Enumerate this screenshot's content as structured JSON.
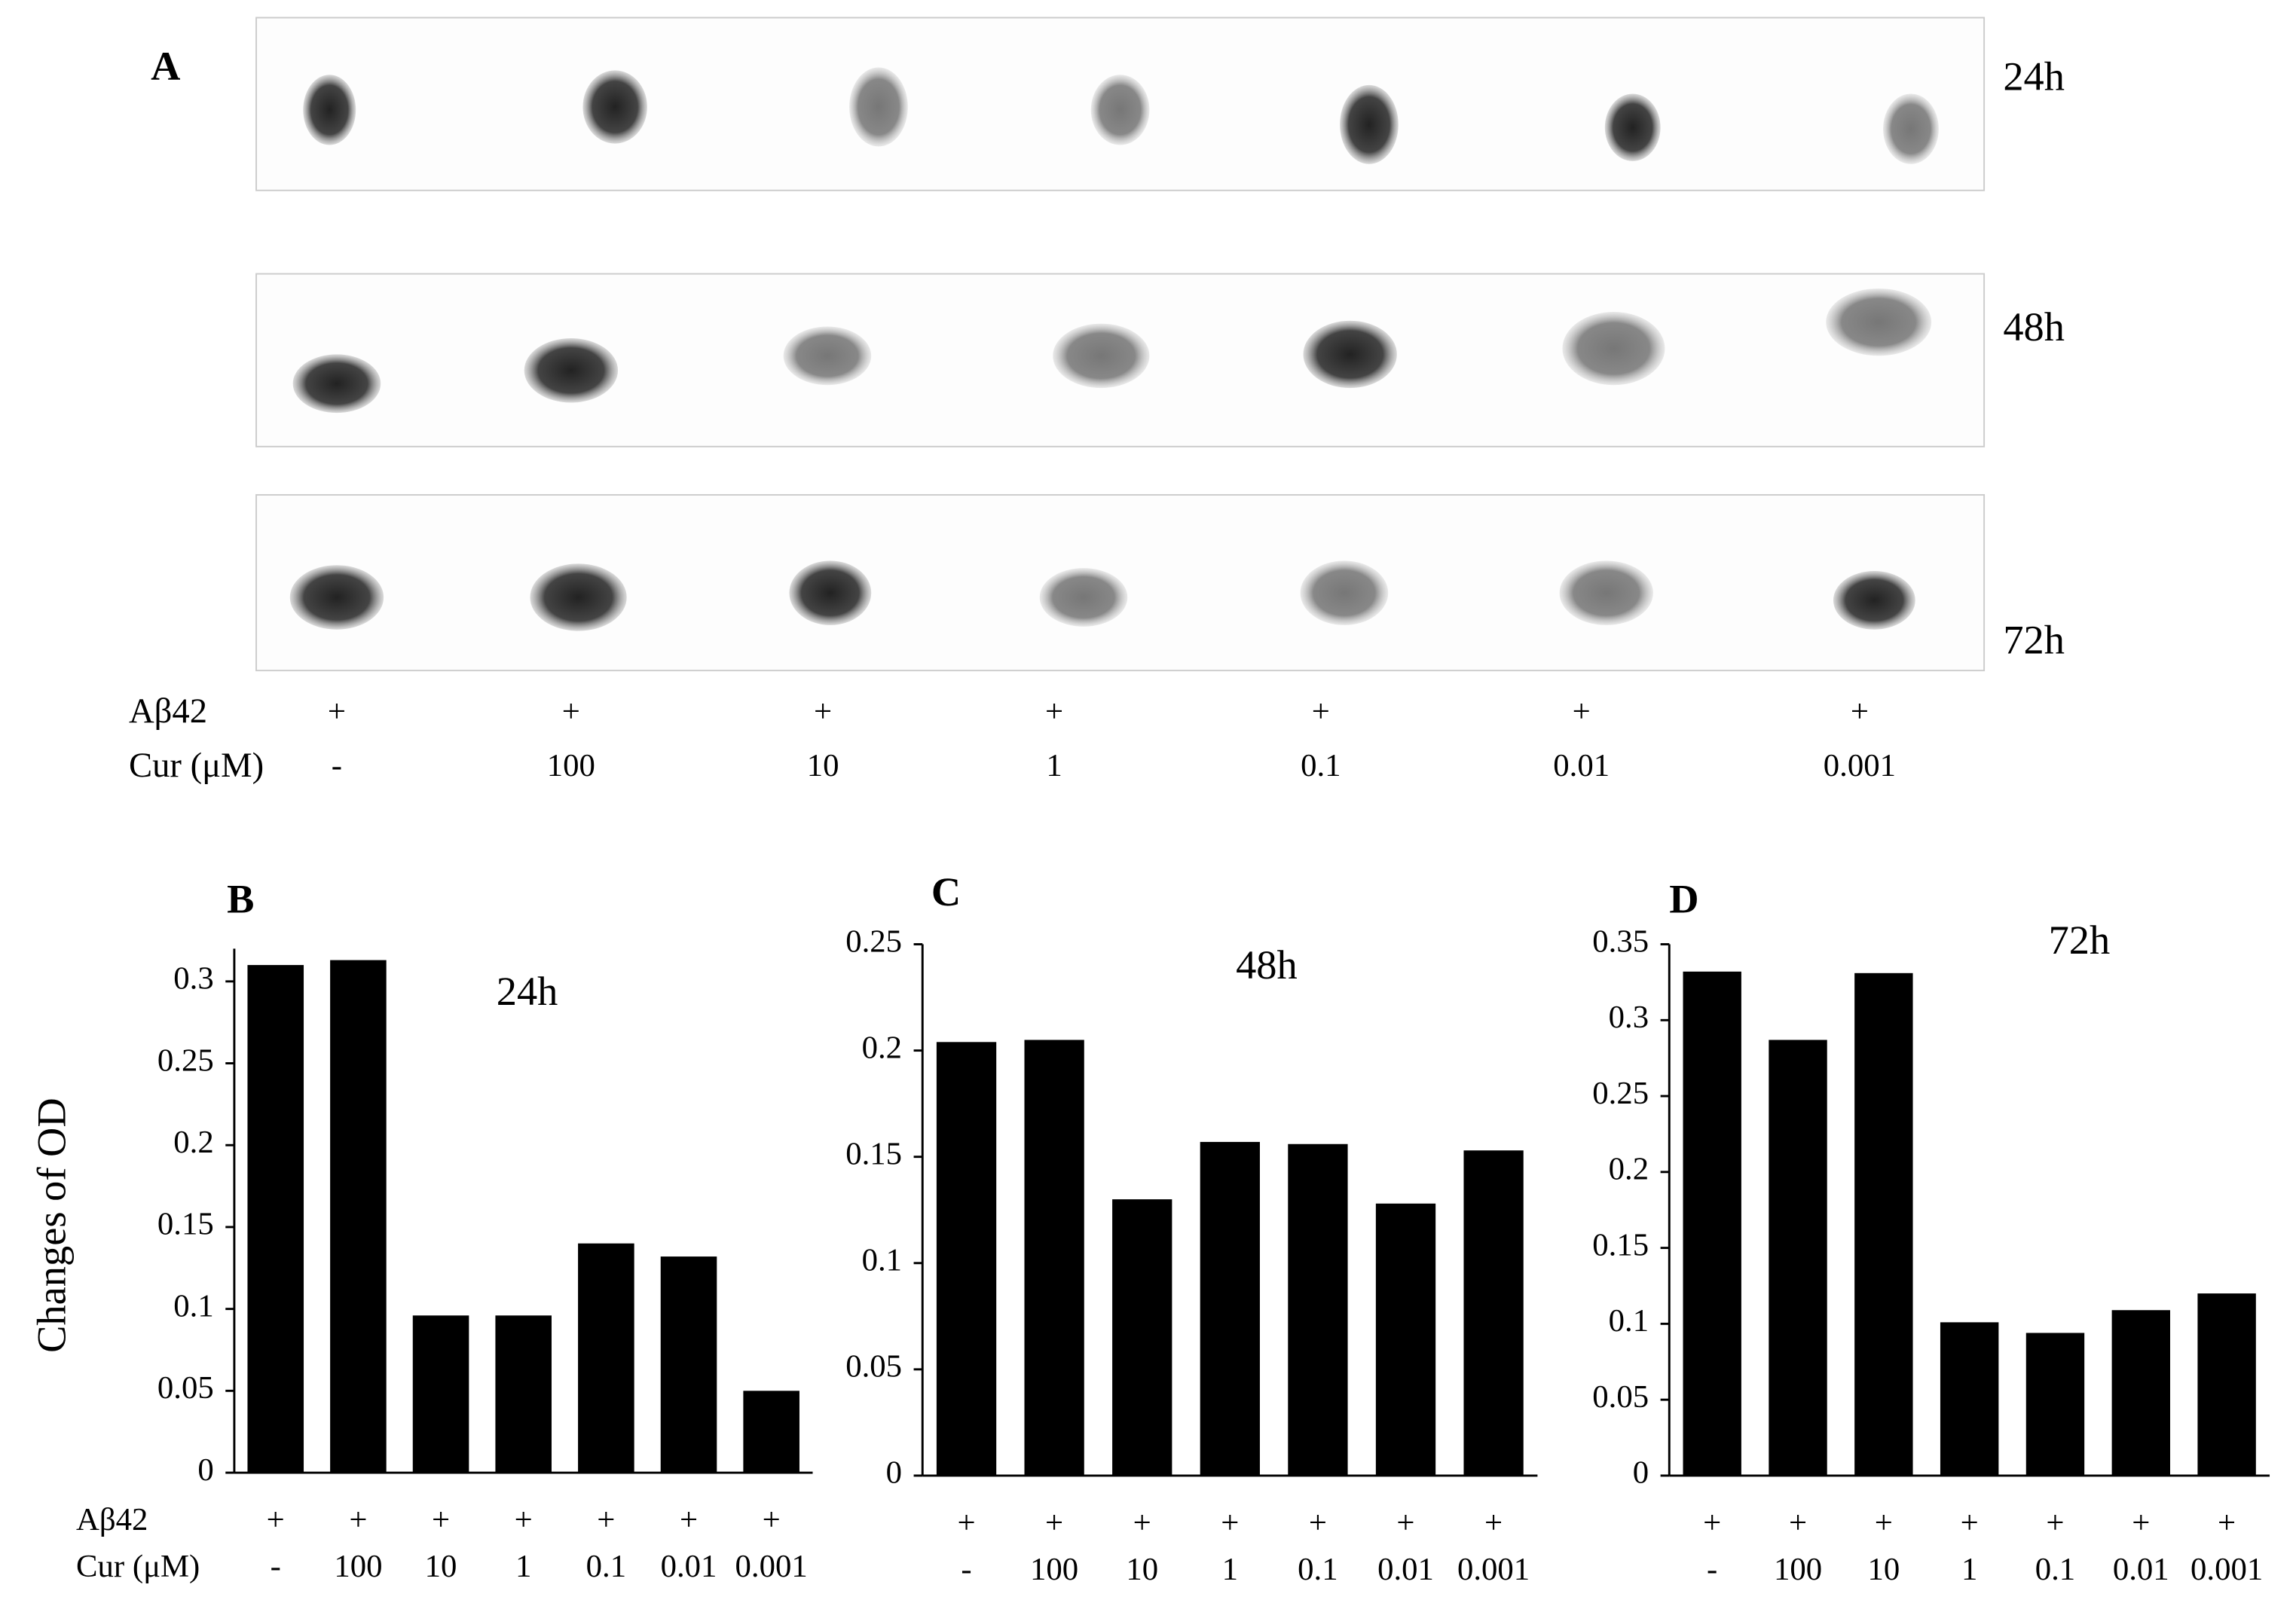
{
  "blot": {
    "label": "A",
    "times": [
      "24h",
      "48h",
      "72h"
    ],
    "row_labels": [
      "Aβ42",
      "Cur (μM)"
    ],
    "abeta": [
      "+",
      "+",
      "+",
      "+",
      "+",
      "+",
      "+"
    ],
    "cur": [
      "-",
      "100",
      "10",
      "1",
      "0.1",
      "0.01",
      "0.001"
    ]
  },
  "chart_data": [
    {
      "type": "bar",
      "panel": "B",
      "title": "24h",
      "ylabel": "Changes of OD",
      "row_labels": [
        "Aβ42",
        "Cur (μM)"
      ],
      "abeta": [
        "+",
        "+",
        "+",
        "+",
        "+",
        "+",
        "+"
      ],
      "categories": [
        "-",
        "100",
        "10",
        "1",
        "0.1",
        "0.01",
        "0.001"
      ],
      "values": [
        0.31,
        0.313,
        0.096,
        0.096,
        0.14,
        0.132,
        0.05
      ],
      "color": "#000000",
      "ylim": [
        0,
        0.32
      ],
      "yticks": [
        0,
        0.05,
        0.1,
        0.15,
        0.2,
        0.25,
        0.3
      ]
    },
    {
      "type": "bar",
      "panel": "C",
      "title": "48h",
      "abeta": [
        "+",
        "+",
        "+",
        "+",
        "+",
        "+",
        "+"
      ],
      "categories": [
        "-",
        "100",
        "10",
        "1",
        "0.1",
        "0.01",
        "0.001"
      ],
      "values": [
        0.204,
        0.205,
        0.13,
        0.157,
        0.156,
        0.128,
        0.153
      ],
      "color": "#000000",
      "ylim": [
        0,
        0.25
      ],
      "yticks": [
        0,
        0.05,
        0.1,
        0.15,
        0.2,
        0.25
      ]
    },
    {
      "type": "bar",
      "panel": "D",
      "title": "72h",
      "abeta": [
        "+",
        "+",
        "+",
        "+",
        "+",
        "+",
        "+"
      ],
      "categories": [
        "-",
        "100",
        "10",
        "1",
        "0.1",
        "0.01",
        "0.001"
      ],
      "values": [
        0.332,
        0.287,
        0.331,
        0.101,
        0.094,
        0.109,
        0.12
      ],
      "color": "#000000",
      "ylim": [
        0,
        0.35
      ],
      "yticks": [
        0,
        0.05,
        0.1,
        0.15,
        0.2,
        0.25,
        0.3,
        0.35
      ]
    }
  ]
}
